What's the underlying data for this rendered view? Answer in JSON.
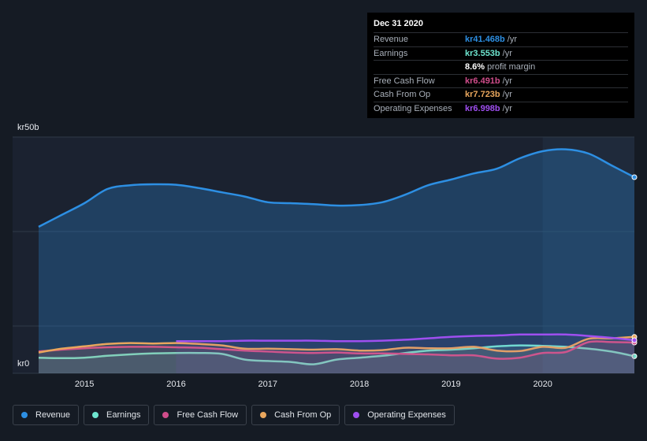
{
  "tooltip": {
    "title": "Dec 31 2020",
    "rows": [
      {
        "label": "Revenue",
        "value": "kr41.468b",
        "unit": "/yr",
        "color": "#2d8fe3"
      },
      {
        "label": "Earnings",
        "value": "kr3.553b",
        "unit": "/yr",
        "color": "#6ee5cf"
      },
      {
        "label": "",
        "value": "8.6%",
        "unit": "profit margin",
        "color": "#ffffff"
      },
      {
        "label": "Free Cash Flow",
        "value": "kr6.491b",
        "unit": "/yr",
        "color": "#d04d8b"
      },
      {
        "label": "Cash From Op",
        "value": "kr7.723b",
        "unit": "/yr",
        "color": "#e9a65d"
      },
      {
        "label": "Operating Expenses",
        "value": "kr6.998b",
        "unit": "/yr",
        "color": "#9f4ff0"
      }
    ]
  },
  "legend": [
    {
      "label": "Revenue",
      "color": "#2d8fe3"
    },
    {
      "label": "Earnings",
      "color": "#6ee5cf"
    },
    {
      "label": "Free Cash Flow",
      "color": "#d04d8b"
    },
    {
      "label": "Cash From Op",
      "color": "#e9a65d"
    },
    {
      "label": "Operating Expenses",
      "color": "#9f4ff0"
    }
  ],
  "chart_data": {
    "type": "area",
    "ylim": [
      0,
      50
    ],
    "xlim": [
      2014.5,
      2021.0
    ],
    "y_tick_labels": {
      "top": "kr50b",
      "bottom": "kr0"
    },
    "x_ticks": [
      2015,
      2016,
      2017,
      2018,
      2019,
      2020
    ],
    "x_tick_labels": [
      "2015",
      "2016",
      "2017",
      "2018",
      "2019",
      "2020"
    ],
    "highlight_from": 2020.0,
    "series": [
      {
        "name": "Revenue",
        "color": "#2d8fe3",
        "x": [
          2014.5,
          2014.75,
          2015.0,
          2015.25,
          2015.5,
          2015.75,
          2016.0,
          2016.25,
          2016.5,
          2016.75,
          2017.0,
          2017.25,
          2017.5,
          2017.75,
          2018.0,
          2018.25,
          2018.5,
          2018.75,
          2019.0,
          2019.25,
          2019.5,
          2019.75,
          2020.0,
          2020.25,
          2020.5,
          2020.75,
          2021.0
        ],
        "values": [
          31.0,
          33.5,
          36.0,
          39.0,
          39.8,
          40.0,
          39.9,
          39.2,
          38.3,
          37.4,
          36.2,
          36.0,
          35.8,
          35.5,
          35.6,
          36.2,
          37.8,
          39.8,
          41.0,
          42.3,
          43.3,
          45.5,
          47.0,
          47.4,
          46.5,
          44.0,
          41.5
        ]
      },
      {
        "name": "Earnings",
        "color": "#6ee5cf",
        "x": [
          2014.5,
          2014.75,
          2015.0,
          2015.25,
          2015.5,
          2015.75,
          2016.0,
          2016.25,
          2016.5,
          2016.75,
          2017.0,
          2017.25,
          2017.5,
          2017.75,
          2018.0,
          2018.25,
          2018.5,
          2018.75,
          2019.0,
          2019.25,
          2019.5,
          2019.75,
          2020.0,
          2020.25,
          2020.5,
          2020.75,
          2021.0
        ],
        "values": [
          3.3,
          3.2,
          3.3,
          3.7,
          4.0,
          4.2,
          4.3,
          4.3,
          4.1,
          2.9,
          2.6,
          2.4,
          1.9,
          2.9,
          3.3,
          3.7,
          4.3,
          4.8,
          5.0,
          5.3,
          5.7,
          5.9,
          5.8,
          5.6,
          5.2,
          4.6,
          3.6
        ]
      },
      {
        "name": "Free Cash Flow",
        "color": "#d04d8b",
        "x": [
          2014.5,
          2014.75,
          2015.0,
          2015.25,
          2015.5,
          2015.75,
          2016.0,
          2016.25,
          2016.5,
          2016.75,
          2017.0,
          2017.25,
          2017.5,
          2017.75,
          2018.0,
          2018.25,
          2018.5,
          2018.75,
          2019.0,
          2019.25,
          2019.5,
          2019.75,
          2020.0,
          2020.25,
          2020.5,
          2020.75,
          2021.0
        ],
        "values": [
          4.6,
          5.0,
          5.3,
          5.5,
          5.6,
          5.6,
          5.5,
          5.4,
          5.1,
          4.8,
          4.6,
          4.4,
          4.3,
          4.4,
          4.2,
          4.2,
          4.1,
          4.0,
          3.8,
          3.8,
          3.1,
          3.3,
          4.3,
          4.5,
          6.6,
          6.6,
          6.5
        ]
      },
      {
        "name": "Cash From Op",
        "color": "#e9a65d",
        "x": [
          2014.5,
          2014.75,
          2015.0,
          2015.25,
          2015.5,
          2015.75,
          2016.0,
          2016.25,
          2016.5,
          2016.75,
          2017.0,
          2017.25,
          2017.5,
          2017.75,
          2018.0,
          2018.25,
          2018.5,
          2018.75,
          2019.0,
          2019.25,
          2019.5,
          2019.75,
          2020.0,
          2020.25,
          2020.5,
          2020.75,
          2021.0
        ],
        "values": [
          4.4,
          5.2,
          5.7,
          6.2,
          6.4,
          6.3,
          6.4,
          6.2,
          5.9,
          5.2,
          5.2,
          5.1,
          5.0,
          5.1,
          4.8,
          4.9,
          5.4,
          5.3,
          5.3,
          5.6,
          4.8,
          4.7,
          5.6,
          5.4,
          7.3,
          7.4,
          7.7
        ]
      },
      {
        "name": "Operating Expenses",
        "color": "#9f4ff0",
        "x": [
          2016.0,
          2016.25,
          2016.5,
          2016.75,
          2017.0,
          2017.25,
          2017.5,
          2017.75,
          2018.0,
          2018.25,
          2018.5,
          2018.75,
          2019.0,
          2019.25,
          2019.5,
          2019.75,
          2020.0,
          2020.25,
          2020.5,
          2020.75,
          2021.0
        ],
        "values": [
          6.8,
          6.8,
          6.8,
          6.9,
          6.9,
          6.9,
          6.9,
          6.8,
          6.8,
          6.9,
          7.1,
          7.4,
          7.7,
          7.9,
          8.0,
          8.2,
          8.2,
          8.2,
          7.9,
          7.5,
          7.0
        ]
      }
    ]
  }
}
